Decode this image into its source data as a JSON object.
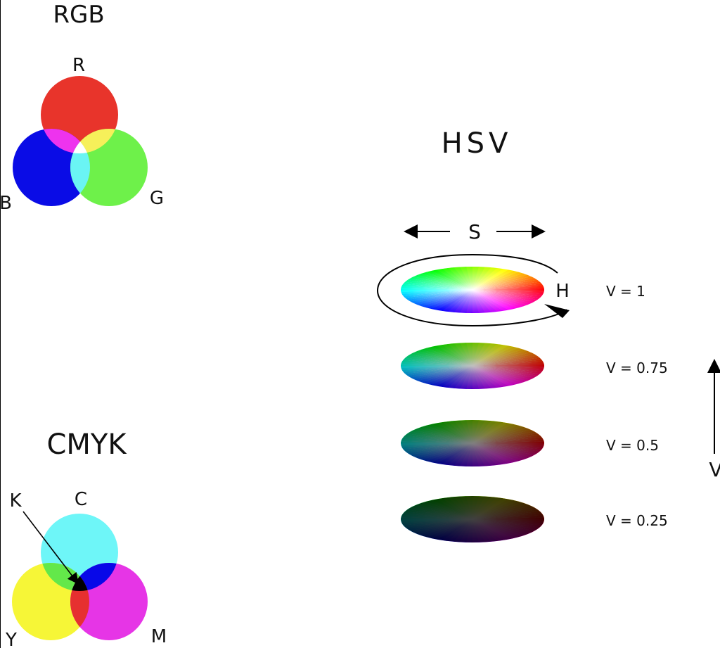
{
  "rgb": {
    "title": "RGB",
    "labels": {
      "r": "R",
      "g": "G",
      "b": "B"
    },
    "colors": {
      "red": "#e8342b",
      "green": "#6ef14a",
      "blue": "#0a0ce6",
      "magenta": "#ee33ee",
      "yellow": "#f6f05a",
      "cyan": "#6af4f4",
      "white": "#ffffff"
    }
  },
  "cmyk": {
    "title": "CMYK",
    "labels": {
      "k": "K",
      "c": "C",
      "y": "Y",
      "m": "M"
    },
    "colors": {
      "cyan": "#6ef6f8",
      "yellow": "#f6f637",
      "magenta": "#e635e6",
      "green": "#63e84a",
      "blue": "#0808e8",
      "red": "#e63030",
      "black": "#000000"
    }
  },
  "hsv": {
    "title": "HSV",
    "labels": {
      "s": "S",
      "h": "H",
      "v": "V"
    },
    "levels": [
      {
        "label": "V = 1",
        "value": 1
      },
      {
        "label": "V = 0.75",
        "value": 0.75
      },
      {
        "label": "V = 0.5",
        "value": 0.5
      },
      {
        "label": "V = 0.25",
        "value": 0.25
      }
    ]
  }
}
